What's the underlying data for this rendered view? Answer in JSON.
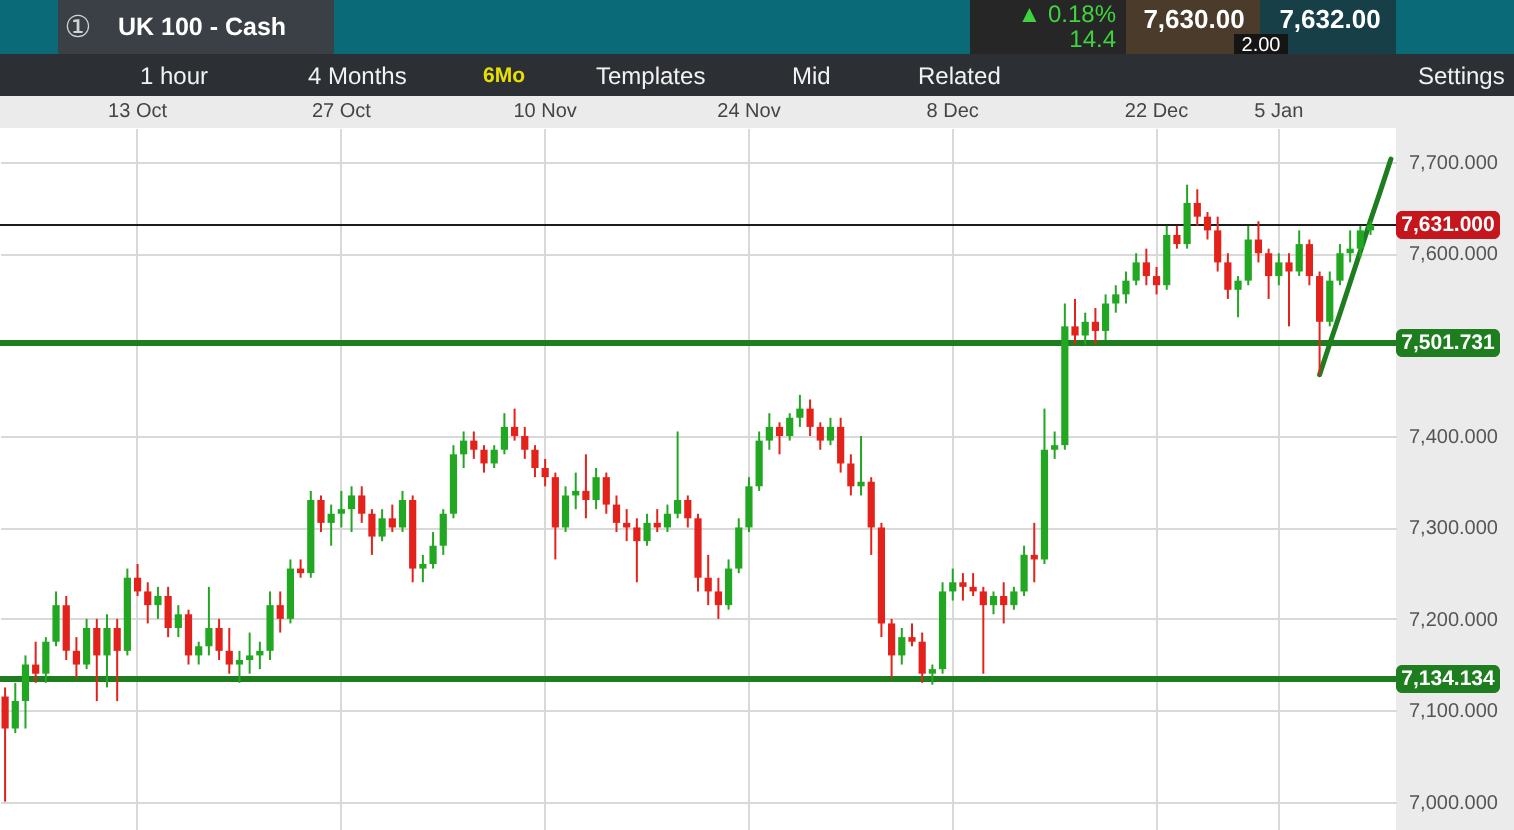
{
  "chart_data": {
    "type": "candlestick",
    "title": "UK 100 - Cash",
    "annotations": [
      "①",
      "▲ 0.18%",
      "14.4",
      "7,630.00",
      "7,632.00",
      "2.00",
      "1 hour",
      "4 Months",
      "6Mo",
      "Templates",
      "Mid",
      "Related",
      "Settings"
    ],
    "categories": [
      null,
      null,
      null,
      null,
      null,
      null,
      null,
      null,
      null,
      null,
      null,
      null,
      null,
      "13 Oct",
      null,
      null,
      null,
      null,
      null,
      null,
      null,
      null,
      null,
      null,
      null,
      null,
      null,
      null,
      null,
      null,
      null,
      null,
      null,
      "27 Oct",
      null,
      null,
      null,
      null,
      null,
      null,
      null,
      null,
      null,
      null,
      null,
      null,
      null,
      null,
      null,
      null,
      null,
      null,
      null,
      "10 Nov",
      null,
      null,
      null,
      null,
      null,
      null,
      null,
      null,
      null,
      null,
      null,
      null,
      null,
      null,
      null,
      null,
      null,
      null,
      null,
      "24 Nov",
      null,
      null,
      null,
      null,
      null,
      null,
      null,
      null,
      null,
      null,
      null,
      null,
      null,
      null,
      null,
      null,
      null,
      null,
      null,
      "8 Dec",
      null,
      null,
      null,
      null,
      null,
      null,
      null,
      null,
      null,
      null,
      null,
      null,
      null,
      null,
      null,
      null,
      null,
      null,
      null,
      "22 Dec",
      null,
      null,
      null,
      null,
      null,
      null,
      null,
      null,
      null,
      null,
      null,
      "5 Jan",
      null,
      null,
      null,
      null,
      null,
      null,
      null,
      null,
      null,
      null,
      null
    ],
    "ohlc": [
      [
        7115,
        7125,
        7000,
        7080
      ],
      [
        7080,
        7130,
        7075,
        7110
      ],
      [
        7110,
        7160,
        7080,
        7150
      ],
      [
        7150,
        7175,
        7130,
        7140
      ],
      [
        7140,
        7180,
        7130,
        7175
      ],
      [
        7175,
        7230,
        7170,
        7215
      ],
      [
        7215,
        7225,
        7155,
        7165
      ],
      [
        7165,
        7180,
        7135,
        7150
      ],
      [
        7150,
        7200,
        7145,
        7190
      ],
      [
        7190,
        7200,
        7110,
        7160
      ],
      [
        7160,
        7205,
        7125,
        7190
      ],
      [
        7190,
        7200,
        7110,
        7165
      ],
      [
        7165,
        7255,
        7160,
        7245
      ],
      [
        7245,
        7260,
        7225,
        7230
      ],
      [
        7230,
        7240,
        7195,
        7215
      ],
      [
        7215,
        7235,
        7200,
        7225
      ],
      [
        7225,
        7235,
        7180,
        7190
      ],
      [
        7190,
        7215,
        7180,
        7205
      ],
      [
        7205,
        7210,
        7150,
        7160
      ],
      [
        7160,
        7175,
        7150,
        7170
      ],
      [
        7170,
        7235,
        7160,
        7190
      ],
      [
        7190,
        7200,
        7155,
        7165
      ],
      [
        7165,
        7190,
        7140,
        7150
      ],
      [
        7150,
        7165,
        7130,
        7155
      ],
      [
        7155,
        7185,
        7140,
        7160
      ],
      [
        7160,
        7175,
        7145,
        7165
      ],
      [
        7165,
        7230,
        7155,
        7215
      ],
      [
        7215,
        7230,
        7185,
        7200
      ],
      [
        7200,
        7265,
        7195,
        7255
      ],
      [
        7255,
        7265,
        7245,
        7250
      ],
      [
        7250,
        7340,
        7245,
        7330
      ],
      [
        7330,
        7335,
        7295,
        7305
      ],
      [
        7305,
        7325,
        7280,
        7315
      ],
      [
        7315,
        7340,
        7300,
        7320
      ],
      [
        7320,
        7345,
        7295,
        7335
      ],
      [
        7335,
        7345,
        7305,
        7315
      ],
      [
        7315,
        7320,
        7270,
        7290
      ],
      [
        7290,
        7320,
        7285,
        7310
      ],
      [
        7310,
        7325,
        7295,
        7300
      ],
      [
        7300,
        7340,
        7295,
        7330
      ],
      [
        7330,
        7335,
        7240,
        7255
      ],
      [
        7255,
        7270,
        7240,
        7260
      ],
      [
        7260,
        7295,
        7255,
        7280
      ],
      [
        7280,
        7320,
        7270,
        7315
      ],
      [
        7315,
        7390,
        7310,
        7380
      ],
      [
        7380,
        7405,
        7365,
        7395
      ],
      [
        7395,
        7405,
        7375,
        7385
      ],
      [
        7385,
        7390,
        7360,
        7370
      ],
      [
        7370,
        7390,
        7365,
        7385
      ],
      [
        7385,
        7425,
        7380,
        7410
      ],
      [
        7410,
        7430,
        7395,
        7400
      ],
      [
        7400,
        7410,
        7375,
        7385
      ],
      [
        7385,
        7390,
        7355,
        7365
      ],
      [
        7365,
        7375,
        7345,
        7355
      ],
      [
        7355,
        7360,
        7265,
        7300
      ],
      [
        7300,
        7345,
        7295,
        7335
      ],
      [
        7335,
        7360,
        7320,
        7340
      ],
      [
        7340,
        7380,
        7310,
        7330
      ],
      [
        7330,
        7365,
        7320,
        7355
      ],
      [
        7355,
        7360,
        7315,
        7325
      ],
      [
        7325,
        7335,
        7295,
        7305
      ],
      [
        7305,
        7320,
        7285,
        7300
      ],
      [
        7300,
        7310,
        7240,
        7285
      ],
      [
        7285,
        7315,
        7280,
        7305
      ],
      [
        7305,
        7320,
        7295,
        7300
      ],
      [
        7300,
        7325,
        7295,
        7315
      ],
      [
        7315,
        7405,
        7310,
        7330
      ],
      [
        7330,
        7335,
        7300,
        7310
      ],
      [
        7310,
        7315,
        7230,
        7245
      ],
      [
        7245,
        7270,
        7215,
        7230
      ],
      [
        7230,
        7245,
        7200,
        7215
      ],
      [
        7215,
        7265,
        7210,
        7255
      ],
      [
        7255,
        7310,
        7250,
        7300
      ],
      [
        7300,
        7355,
        7295,
        7345
      ],
      [
        7345,
        7405,
        7340,
        7395
      ],
      [
        7395,
        7425,
        7385,
        7410
      ],
      [
        7410,
        7415,
        7380,
        7400
      ],
      [
        7400,
        7425,
        7395,
        7420
      ],
      [
        7420,
        7445,
        7410,
        7430
      ],
      [
        7430,
        7440,
        7400,
        7410
      ],
      [
        7410,
        7415,
        7385,
        7395
      ],
      [
        7395,
        7420,
        7390,
        7410
      ],
      [
        7410,
        7420,
        7360,
        7370
      ],
      [
        7370,
        7380,
        7335,
        7345
      ],
      [
        7345,
        7400,
        7335,
        7350
      ],
      [
        7350,
        7355,
        7270,
        7300
      ],
      [
        7300,
        7305,
        7180,
        7195
      ],
      [
        7195,
        7200,
        7135,
        7160
      ],
      [
        7160,
        7190,
        7150,
        7180
      ],
      [
        7180,
        7195,
        7170,
        7175
      ],
      [
        7175,
        7185,
        7130,
        7140
      ],
      [
        7140,
        7150,
        7128,
        7145
      ],
      [
        7145,
        7240,
        7140,
        7230
      ],
      [
        7230,
        7255,
        7220,
        7240
      ],
      [
        7240,
        7250,
        7220,
        7235
      ],
      [
        7235,
        7250,
        7225,
        7230
      ],
      [
        7230,
        7235,
        7140,
        7215
      ],
      [
        7215,
        7230,
        7205,
        7225
      ],
      [
        7225,
        7240,
        7195,
        7215
      ],
      [
        7215,
        7235,
        7210,
        7230
      ],
      [
        7230,
        7280,
        7225,
        7270
      ],
      [
        7270,
        7305,
        7240,
        7265
      ],
      [
        7265,
        7430,
        7260,
        7385
      ],
      [
        7385,
        7405,
        7375,
        7390
      ],
      [
        7390,
        7545,
        7385,
        7520
      ],
      [
        7520,
        7550,
        7500,
        7510
      ],
      [
        7510,
        7535,
        7500,
        7525
      ],
      [
        7525,
        7540,
        7500,
        7515
      ],
      [
        7515,
        7555,
        7505,
        7545
      ],
      [
        7545,
        7565,
        7535,
        7555
      ],
      [
        7555,
        7580,
        7545,
        7570
      ],
      [
        7570,
        7600,
        7565,
        7590
      ],
      [
        7590,
        7605,
        7565,
        7575
      ],
      [
        7575,
        7585,
        7555,
        7565
      ],
      [
        7565,
        7630,
        7560,
        7620
      ],
      [
        7620,
        7630,
        7605,
        7610
      ],
      [
        7610,
        7675,
        7605,
        7655
      ],
      [
        7655,
        7670,
        7630,
        7640
      ],
      [
        7640,
        7645,
        7615,
        7625
      ],
      [
        7625,
        7640,
        7580,
        7590
      ],
      [
        7590,
        7600,
        7550,
        7560
      ],
      [
        7560,
        7575,
        7530,
        7570
      ],
      [
        7570,
        7630,
        7565,
        7615
      ],
      [
        7615,
        7635,
        7590,
        7600
      ],
      [
        7600,
        7605,
        7550,
        7575
      ],
      [
        7575,
        7600,
        7565,
        7590
      ],
      [
        7590,
        7600,
        7520,
        7580
      ],
      [
        7580,
        7625,
        7575,
        7610
      ],
      [
        7610,
        7615,
        7565,
        7575
      ],
      [
        7575,
        7580,
        7467,
        7525
      ],
      [
        7525,
        7580,
        7520,
        7570
      ],
      [
        7570,
        7610,
        7565,
        7600
      ],
      [
        7600,
        7625,
        7590,
        7605
      ],
      [
        7605,
        7630,
        7595,
        7625
      ],
      [
        7625,
        7635,
        7620,
        7631
      ],
      null,
      null
    ],
    "colors": [
      "#e3221c",
      "#22a722",
      "#22a722",
      "#e3221c",
      "#22a722",
      "#22a722",
      "#e3221c",
      "#e3221c",
      "#22a722",
      "#e3221c",
      "#22a722",
      "#e3221c",
      "#22a722",
      "#e3221c",
      "#e3221c",
      "#22a722",
      "#e3221c",
      "#22a722",
      "#e3221c",
      "#22a722",
      "#22a722",
      "#e3221c",
      "#e3221c",
      "#22a722",
      "#22a722",
      "#22a722",
      "#22a722",
      "#e3221c",
      "#22a722",
      "#e3221c",
      "#22a722",
      "#e3221c",
      "#22a722",
      "#22a722",
      "#22a722",
      "#e3221c",
      "#e3221c",
      "#22a722",
      "#e3221c",
      "#22a722",
      "#e3221c",
      "#22a722",
      "#22a722",
      "#22a722",
      "#22a722",
      "#22a722",
      "#e3221c",
      "#e3221c",
      "#22a722",
      "#22a722",
      "#e3221c",
      "#e3221c",
      "#e3221c",
      "#e3221c",
      "#e3221c",
      "#22a722",
      "#22a722",
      "#e3221c",
      "#22a722",
      "#e3221c",
      "#e3221c",
      "#e3221c",
      "#e3221c",
      "#22a722",
      "#e3221c",
      "#22a722",
      "#22a722",
      "#e3221c",
      "#e3221c",
      "#e3221c",
      "#e3221c",
      "#22a722",
      "#22a722",
      "#22a722",
      "#22a722",
      "#22a722",
      "#e3221c",
      "#22a722",
      "#22a722",
      "#e3221c",
      "#e3221c",
      "#22a722",
      "#e3221c",
      "#e3221c",
      "#22a722",
      "#e3221c",
      "#e3221c",
      "#e3221c",
      "#22a722",
      "#e3221c",
      "#e3221c",
      "#22a722",
      "#22a722",
      "#22a722",
      "#e3221c",
      "#e3221c",
      "#e3221c",
      "#22a722",
      "#e3221c",
      "#22a722",
      "#22a722",
      "#e3221c",
      "#22a722",
      "#22a722",
      "#22a722",
      "#e3221c",
      "#22a722",
      "#e3221c",
      "#22a722",
      "#22a722",
      "#22a722",
      "#22a722",
      "#e3221c",
      "#e3221c",
      "#22a722",
      "#e3221c",
      "#22a722",
      "#e3221c",
      "#e3221c",
      "#e3221c",
      "#e3221c",
      "#22a722",
      "#22a722",
      "#e3221c",
      "#e3221c",
      "#22a722",
      "#e3221c",
      "#22a722",
      "#e3221c",
      "#e3221c",
      "#22a722",
      "#22a722",
      "#22a722",
      "#22a722",
      "#22a722",
      null,
      null
    ],
    "series": [
      {
        "type": "line",
        "color": "#1e7d1e",
        "values": [
          null,
          null,
          null,
          null,
          null,
          null,
          null,
          null,
          null,
          null,
          null,
          null,
          null,
          null,
          null,
          null,
          null,
          null,
          null,
          null,
          null,
          null,
          null,
          null,
          null,
          null,
          null,
          null,
          null,
          null,
          null,
          null,
          null,
          null,
          null,
          null,
          null,
          null,
          null,
          null,
          null,
          null,
          null,
          null,
          null,
          null,
          null,
          null,
          null,
          null,
          null,
          null,
          null,
          null,
          null,
          null,
          null,
          null,
          null,
          null,
          null,
          null,
          null,
          null,
          null,
          null,
          null,
          null,
          null,
          null,
          null,
          null,
          null,
          null,
          null,
          null,
          null,
          null,
          null,
          null,
          null,
          null,
          null,
          null,
          null,
          null,
          null,
          null,
          null,
          null,
          null,
          null,
          null,
          null,
          null,
          null,
          null,
          null,
          null,
          null,
          null,
          null,
          null,
          null,
          null,
          null,
          null,
          null,
          null,
          null,
          null,
          null,
          null,
          null,
          null,
          null,
          null,
          null,
          null,
          null,
          null,
          null,
          null,
          null,
          null,
          null,
          null,
          null,
          null,
          7467,
          7501,
          7534,
          7568,
          7602,
          7636,
          7669,
          7703
        ]
      }
    ],
    "ref_lines": [
      {
        "axis": "y",
        "value": 7631,
        "label": "7,631.000"
      },
      {
        "axis": "y",
        "value": 7501.731,
        "label": "7,501.731",
        "color": "#1e7d1e"
      },
      {
        "axis": "y",
        "value": 7134.134,
        "label": "7,134.134",
        "color": "#1e7d1e"
      }
    ],
    "ylim": [
      6969,
      7737
    ],
    "yticks": [
      {
        "value": 7000,
        "label": "7,000.000"
      },
      {
        "value": 7100,
        "label": "7,100.000"
      },
      {
        "value": 7200,
        "label": "7,200.000"
      },
      {
        "value": 7300,
        "label": "7,300.000"
      },
      {
        "value": 7400,
        "label": "7,400.000"
      },
      {
        "value": 7500,
        "label": null
      },
      {
        "value": 7600,
        "label": "7,600.000"
      },
      {
        "value": 7700,
        "label": "7,700.000"
      }
    ],
    "grid": true
  }
}
